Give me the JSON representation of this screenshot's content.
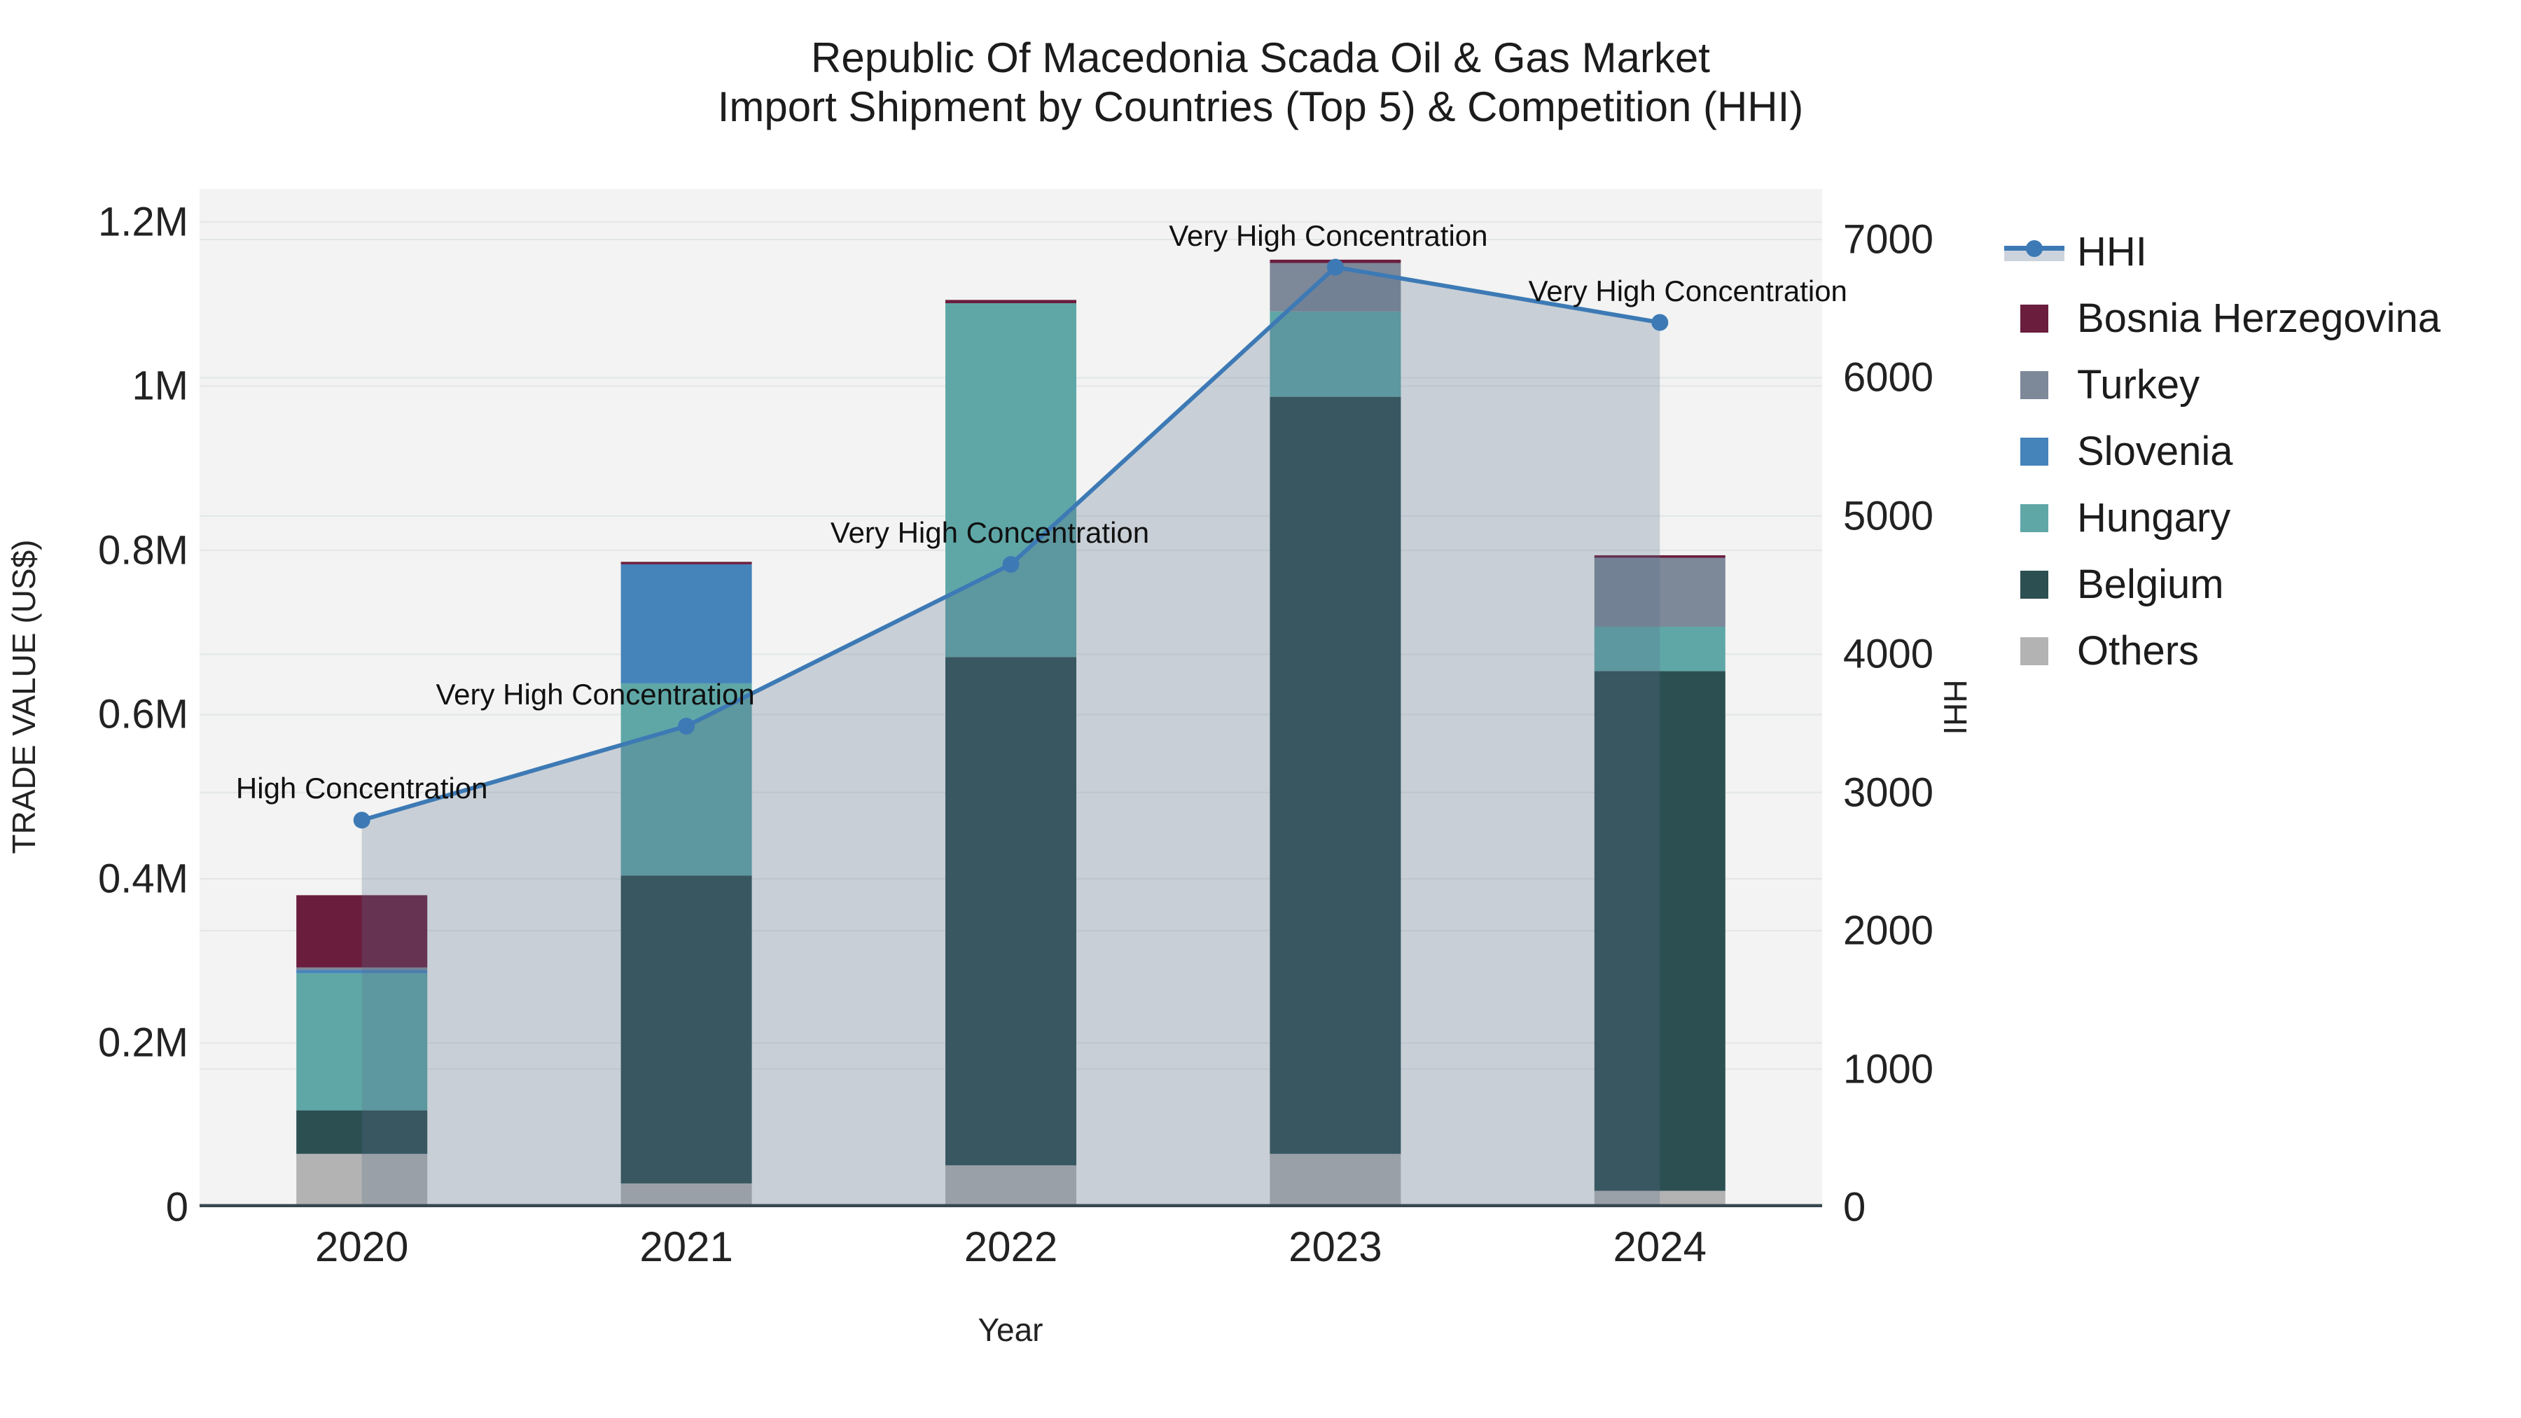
{
  "title": {
    "line1": "Republic Of Macedonia Scada Oil & Gas Market",
    "line2": "Import Shipment by Countries (Top 5) & Competition (HHI)"
  },
  "chart_data": {
    "type": "bar",
    "subtype": "stacked-bars-with-line",
    "categories": [
      "2020",
      "2021",
      "2022",
      "2023",
      "2024"
    ],
    "series": [
      {
        "name": "Others",
        "color": "#b3b3b3",
        "values": [
          65000,
          29000,
          51000,
          65000,
          20000
        ]
      },
      {
        "name": "Belgium",
        "color": "#2c4f52",
        "values": [
          53000,
          375000,
          619000,
          922000,
          633000
        ]
      },
      {
        "name": "Hungary",
        "color": "#5fa7a7",
        "values": [
          167000,
          234000,
          431000,
          104000,
          54000
        ]
      },
      {
        "name": "Slovenia",
        "color": "#4583bb",
        "values": [
          4000,
          145000,
          0,
          0,
          0
        ]
      },
      {
        "name": "Turkey",
        "color": "#7d8899",
        "values": [
          3000,
          0,
          0,
          59000,
          84000
        ]
      },
      {
        "name": "Bosnia Herzegovina",
        "color": "#6b1d3d",
        "values": [
          88000,
          3000,
          4000,
          4000,
          3000
        ]
      }
    ],
    "line_series": {
      "name": "HHI",
      "color": "#3d7ab5",
      "area_fill": "rgba(90,110,140,0.27)",
      "values": [
        2800,
        3480,
        4650,
        6800,
        6400
      ]
    },
    "annotations": [
      {
        "category": "2020",
        "text": "High Concentration",
        "dx": 0
      },
      {
        "category": "2021",
        "text": "Very High Concentration",
        "dx": -130
      },
      {
        "category": "2022",
        "text": "Very High Concentration",
        "dx": -30
      },
      {
        "category": "2023",
        "text": "Very High Concentration",
        "dx": -10
      },
      {
        "category": "2024",
        "text": "Very High Concentration",
        "dx": 40
      }
    ],
    "y_left": {
      "label": "TRADE VALUE (US$)",
      "max": 1240000,
      "ticks": [
        {
          "v": 0,
          "label": "0"
        },
        {
          "v": 200000,
          "label": "0.2M"
        },
        {
          "v": 400000,
          "label": "0.4M"
        },
        {
          "v": 600000,
          "label": "0.6M"
        },
        {
          "v": 800000,
          "label": "0.8M"
        },
        {
          "v": 1000000,
          "label": "1M"
        },
        {
          "v": 1200000,
          "label": "1.2M"
        }
      ]
    },
    "y_right": {
      "label": "HHI",
      "max": 7365,
      "ticks": [
        {
          "v": 0,
          "label": "0"
        },
        {
          "v": 1000,
          "label": "1000"
        },
        {
          "v": 2000,
          "label": "2000"
        },
        {
          "v": 3000,
          "label": "3000"
        },
        {
          "v": 4000,
          "label": "4000"
        },
        {
          "v": 5000,
          "label": "5000"
        },
        {
          "v": 6000,
          "label": "6000"
        },
        {
          "v": 7000,
          "label": "7000"
        }
      ]
    },
    "x_axis": {
      "label": "Year"
    },
    "grid": true,
    "legend_position": "right",
    "colors": {
      "plot_bg": "#f2f3f2",
      "grid": "#e3e6e8",
      "baseline": "#37474f"
    }
  },
  "legend": {
    "items": [
      {
        "type": "line",
        "label": "HHI",
        "color": "#3d7ab5",
        "band": "#ccd3dd"
      },
      {
        "type": "swatch",
        "label": "Bosnia Herzegovina",
        "color": "#6b1d3d"
      },
      {
        "type": "swatch",
        "label": "Turkey",
        "color": "#7d8899"
      },
      {
        "type": "swatch",
        "label": "Slovenia",
        "color": "#4583bb"
      },
      {
        "type": "swatch",
        "label": "Hungary",
        "color": "#5fa7a7"
      },
      {
        "type": "swatch",
        "label": "Belgium",
        "color": "#2c4f52"
      },
      {
        "type": "swatch",
        "label": "Others",
        "color": "#b3b3b3"
      }
    ]
  }
}
